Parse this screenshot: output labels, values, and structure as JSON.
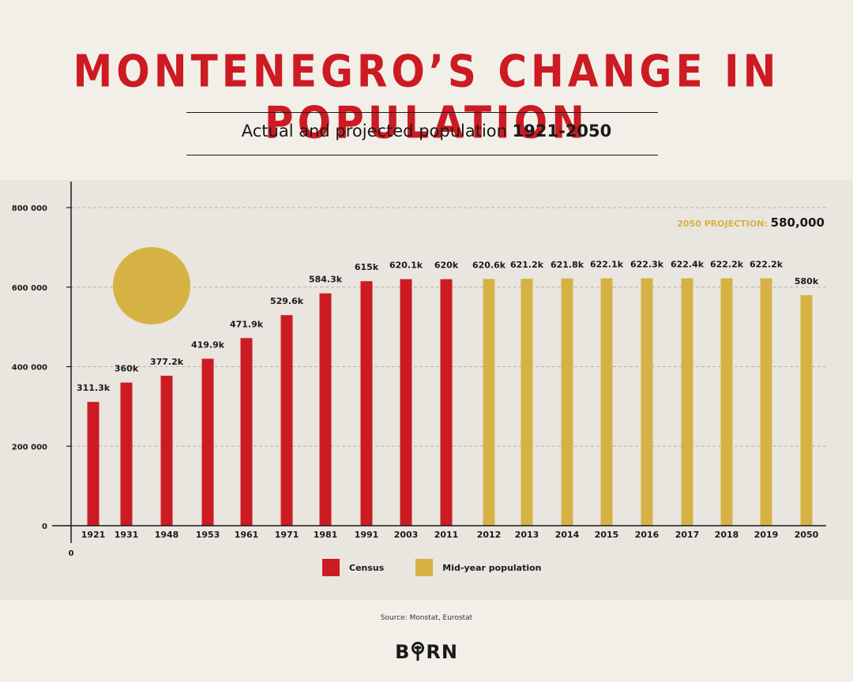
{
  "title": "MONTENEGRO’S CHANGE IN POPULATION",
  "subtitle": {
    "text": "Actual and projected population",
    "range": "1921-2050"
  },
  "projection": {
    "label": "2050 PROJECTION:",
    "value": "580,000"
  },
  "source": "Source: Monstat, Eurostat",
  "logo": {
    "left": "B",
    "right": "RN"
  },
  "colors": {
    "census": "#cc1b22",
    "midyear": "#d6b245",
    "title": "#cc1b22",
    "panel": "#e9e6df"
  },
  "chart_data": {
    "type": "bar",
    "categories": [
      "1921",
      "1931",
      "1948",
      "1953",
      "1961",
      "1971",
      "1981",
      "1991",
      "2003",
      "2011",
      "2012",
      "2013",
      "2014",
      "2015",
      "2016",
      "2017",
      "2018",
      "2019",
      "2050"
    ],
    "values": [
      311300,
      360000,
      377200,
      419900,
      471900,
      529600,
      584300,
      615000,
      620100,
      620000,
      620600,
      621200,
      621800,
      622100,
      622300,
      622400,
      622200,
      622200,
      580000
    ],
    "data_labels": [
      "311.3k",
      "360k",
      "377.2k",
      "419.9k",
      "471.9k",
      "529.6k",
      "584.3k",
      "615k",
      "620.1k",
      "620k",
      "620.6k",
      "621.2k",
      "621.8k",
      "622.1k",
      "622.3k",
      "622.4k",
      "622.2k",
      "622.2k",
      "580k"
    ],
    "series_type": [
      "Census",
      "Census",
      "Census",
      "Census",
      "Census",
      "Census",
      "Census",
      "Census",
      "Census",
      "Census",
      "Mid-year population",
      "Mid-year population",
      "Mid-year population",
      "Mid-year population",
      "Mid-year population",
      "Mid-year population",
      "Mid-year population",
      "Mid-year population",
      "Mid-year population"
    ],
    "legend": [
      "Census",
      "Mid-year population"
    ],
    "y_ticks": [
      "0",
      "200 000",
      "400 000",
      "600 000",
      "800 000"
    ],
    "y_tick_values": [
      0,
      200000,
      400000,
      600000,
      800000
    ],
    "x_origin_label": "0",
    "ylim": [
      0,
      800000
    ],
    "grid": true
  }
}
